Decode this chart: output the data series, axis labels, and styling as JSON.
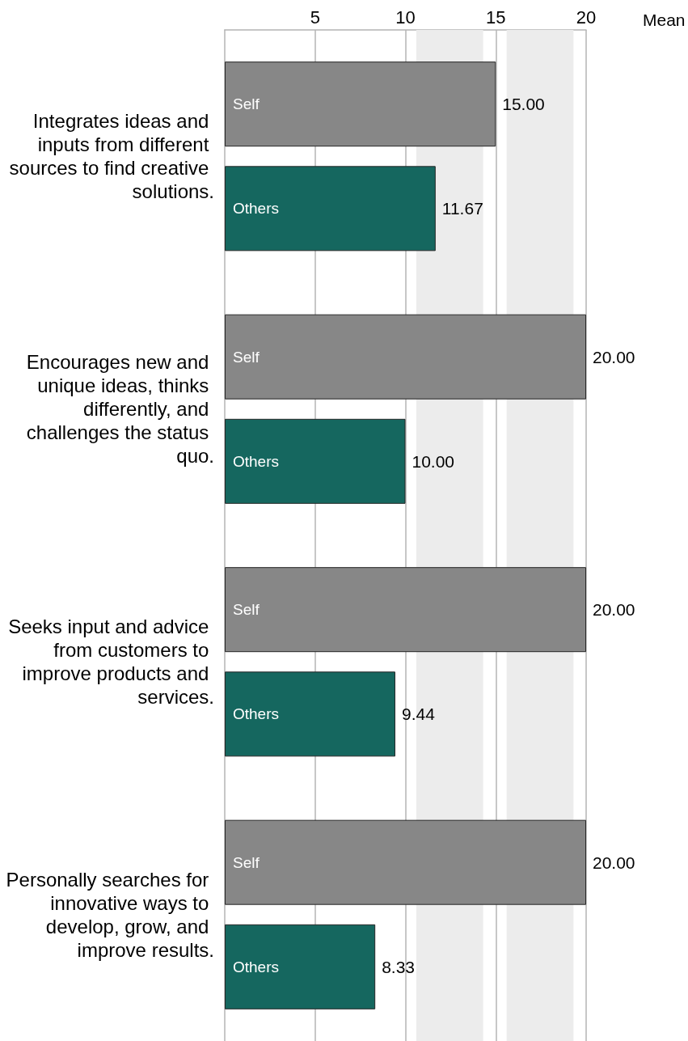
{
  "chart_data": {
    "type": "bar",
    "orientation": "horizontal",
    "categories": [
      "Integrates ideas and inputs from different sources to find creative solutions.",
      "Encourages new and unique ideas, thinks differently, and challenges the status quo.",
      "Seeks input and advice from customers to improve products and services.",
      "Personally searches for innovative ways to develop, grow, and improve results."
    ],
    "series": [
      {
        "name": "Self",
        "color": "#878787",
        "values": [
          15,
          20,
          20,
          20
        ],
        "value_labels": [
          "15.00",
          "20.00",
          "20.00",
          "20.00"
        ]
      },
      {
        "name": "Others",
        "color": "#15675f",
        "values": [
          11.67,
          10,
          9.44,
          8.33
        ],
        "value_labels": [
          "11.67",
          "10.00",
          "9.44",
          "8.33"
        ]
      }
    ],
    "xlim": [
      0,
      20
    ],
    "xticks": [
      5,
      10,
      15,
      20
    ],
    "grid": "x",
    "bands": [
      {
        "axis": "x",
        "from": 10.6,
        "to": 14.3,
        "color": "#ececec"
      },
      {
        "axis": "x",
        "from": 15.6,
        "to": 19.3,
        "color": "#ececec"
      }
    ],
    "annotations": [
      "Mean"
    ]
  }
}
